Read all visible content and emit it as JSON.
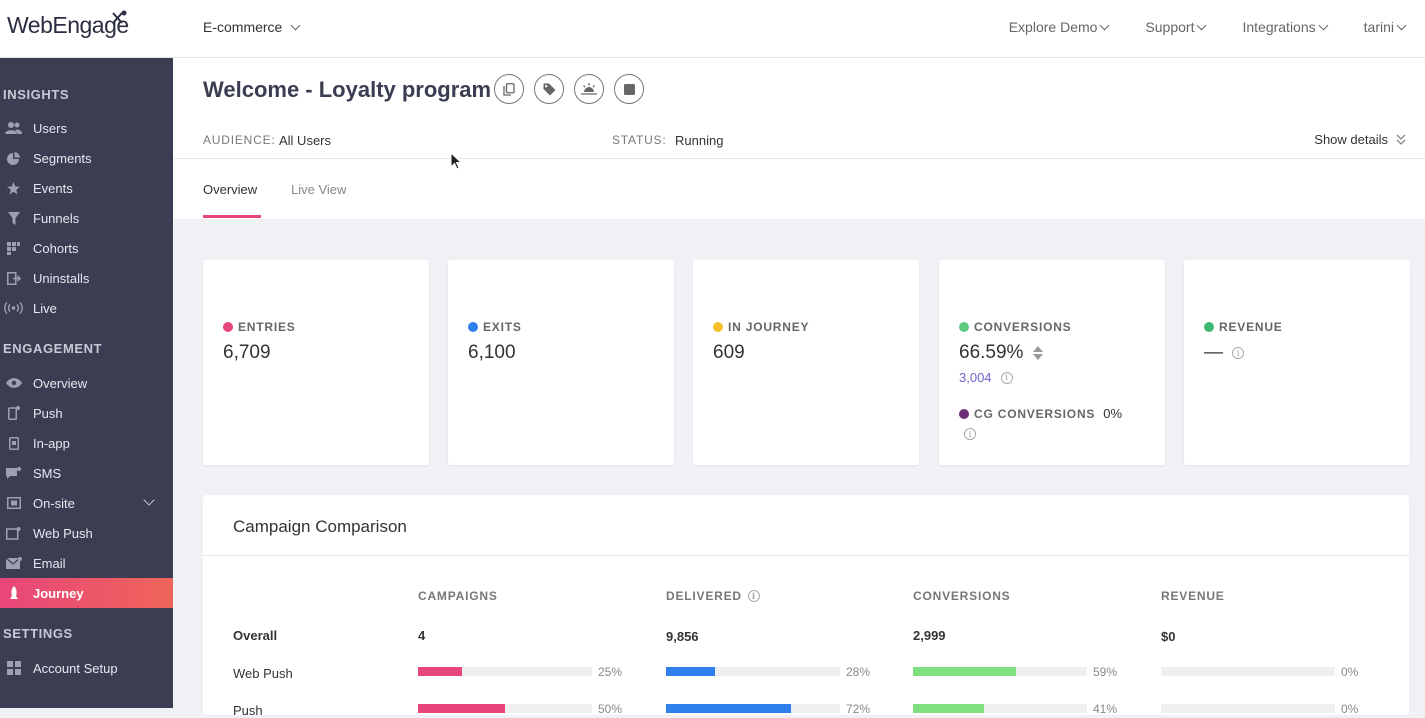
{
  "topbar": {
    "logo_text": "WebEngage",
    "workspace": "E-commerce",
    "nav": [
      "Explore Demo",
      "Support",
      "Integrations",
      "tarini"
    ]
  },
  "sidebar": {
    "sections": {
      "insights": "INSIGHTS",
      "engagement": "ENGAGEMENT",
      "settings": "SETTINGS"
    },
    "insights_items": [
      {
        "label": "Users",
        "icon": "users-icon"
      },
      {
        "label": "Segments",
        "icon": "segments-icon"
      },
      {
        "label": "Events",
        "icon": "events-icon"
      },
      {
        "label": "Funnels",
        "icon": "funnels-icon"
      },
      {
        "label": "Cohorts",
        "icon": "cohorts-icon"
      },
      {
        "label": "Uninstalls",
        "icon": "uninstalls-icon"
      },
      {
        "label": "Live",
        "icon": "live-icon"
      }
    ],
    "engagement_items": [
      {
        "label": "Overview",
        "icon": "eye-icon"
      },
      {
        "label": "Push",
        "icon": "push-icon"
      },
      {
        "label": "In-app",
        "icon": "in-app-icon"
      },
      {
        "label": "SMS",
        "icon": "sms-icon"
      },
      {
        "label": "On-site",
        "icon": "on-site-icon"
      },
      {
        "label": "Web Push",
        "icon": "web-push-icon"
      },
      {
        "label": "Email",
        "icon": "email-icon"
      },
      {
        "label": "Journey",
        "icon": "journey-icon",
        "active": true
      }
    ],
    "settings_items": [
      {
        "label": "Account Setup",
        "icon": "account-setup-icon"
      }
    ]
  },
  "header": {
    "title": "Welcome - Loyalty program",
    "audience_label": "AUDIENCE:",
    "audience_value": "All Users",
    "status_label": "STATUS:",
    "status_value": "Running",
    "show_details": "Show details",
    "tabs": [
      "Overview",
      "Live View"
    ]
  },
  "stats": {
    "entries": {
      "label": "ENTRIES",
      "value": "6,709",
      "color": "#e8467a"
    },
    "exits": {
      "label": "EXITS",
      "value": "6,100",
      "color": "#2f80ed"
    },
    "in_journey": {
      "label": "IN JOURNEY",
      "value": "609",
      "color": "#f5c02b"
    },
    "conversions": {
      "label": "CONVERSIONS",
      "value": "66.59%",
      "sub": "3,004",
      "color": "#5ecb7e"
    },
    "cg_conversions": {
      "label": "CG CONVERSIONS",
      "value": "0%",
      "color": "#6b2e77"
    },
    "revenue": {
      "label": "REVENUE",
      "value": "—",
      "color": "#3fb672"
    }
  },
  "comparison": {
    "title": "Campaign Comparison",
    "columns": [
      "CAMPAIGNS",
      "DELIVERED",
      "CONVERSIONS",
      "REVENUE"
    ],
    "overall": {
      "label": "Overall",
      "values": [
        "4",
        "9,856",
        "2,999",
        "$0"
      ]
    },
    "rows": [
      {
        "label": "Web Push",
        "pcts": [
          "25%",
          "28%",
          "59%",
          "0%"
        ],
        "fractions": [
          0.25,
          0.28,
          0.59,
          0
        ]
      },
      {
        "label": "Push",
        "pcts": [
          "50%",
          "72%",
          "41%",
          "0%"
        ],
        "fractions": [
          0.5,
          0.72,
          0.41,
          0
        ]
      }
    ],
    "bar_colors": [
      "#e8467a",
      "#2f80ed",
      "#7ee07e",
      "#cccccc"
    ]
  }
}
